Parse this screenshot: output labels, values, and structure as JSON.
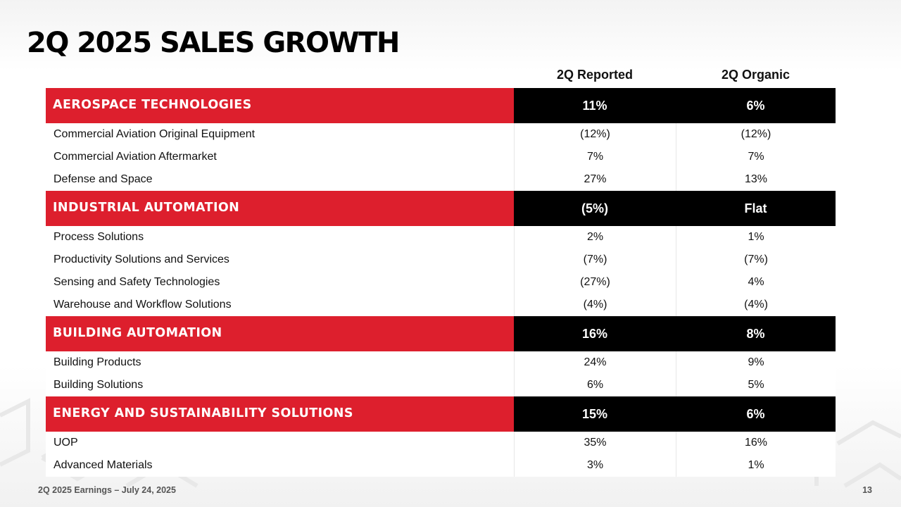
{
  "title": "2Q 2025 SALES GROWTH",
  "columns": {
    "reported": "2Q Reported",
    "organic": "2Q Organic"
  },
  "segments": [
    {
      "name": "AEROSPACE TECHNOLOGIES",
      "reported": "11%",
      "organic": "6%",
      "rows": [
        {
          "name": "Commercial Aviation Original Equipment",
          "reported": "(12%)",
          "organic": "(12%)"
        },
        {
          "name": "Commercial Aviation Aftermarket",
          "reported": "7%",
          "organic": "7%"
        },
        {
          "name": "Defense and Space",
          "reported": "27%",
          "organic": "13%"
        }
      ]
    },
    {
      "name": "INDUSTRIAL AUTOMATION",
      "reported": "(5%)",
      "organic": "Flat",
      "rows": [
        {
          "name": "Process Solutions",
          "reported": "2%",
          "organic": "1%"
        },
        {
          "name": "Productivity Solutions and Services",
          "reported": "(7%)",
          "organic": "(7%)"
        },
        {
          "name": "Sensing and Safety Technologies",
          "reported": "(27%)",
          "organic": "4%"
        },
        {
          "name": "Warehouse and Workflow Solutions",
          "reported": "(4%)",
          "organic": "(4%)"
        }
      ]
    },
    {
      "name": "BUILDING AUTOMATION",
      "reported": "16%",
      "organic": "8%",
      "rows": [
        {
          "name": "Building Products",
          "reported": "24%",
          "organic": "9%"
        },
        {
          "name": "Building Solutions",
          "reported": "6%",
          "organic": "5%"
        }
      ]
    },
    {
      "name": "ENERGY AND SUSTAINABILITY SOLUTIONS",
      "reported": "15%",
      "organic": "6%",
      "rows": [
        {
          "name": "UOP",
          "reported": "35%",
          "organic": "16%"
        },
        {
          "name": "Advanced Materials",
          "reported": "3%",
          "organic": "1%"
        }
      ]
    }
  ],
  "footer": {
    "left": "2Q 2025 Earnings – July 24, 2025",
    "page": "13"
  },
  "colors": {
    "segment_red": "#dd1f2d",
    "segment_black": "#000000"
  }
}
